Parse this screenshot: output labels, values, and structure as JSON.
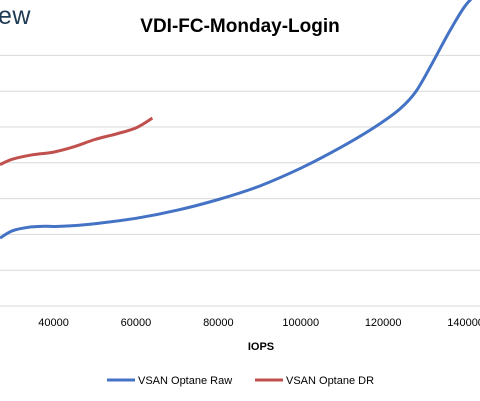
{
  "logo_fragment": "ew",
  "chart_data": {
    "type": "line",
    "title": "VDI-FC-Monday-Login",
    "xlabel": "IOPS",
    "ylabel": "",
    "x_ticks": [
      40000,
      60000,
      80000,
      100000,
      120000,
      140000
    ],
    "xlim": [
      27000,
      143500
    ],
    "grid": "horizontal",
    "legend_position": "bottom",
    "series": [
      {
        "name": "VSAN Optane Raw",
        "color": "#4472c4",
        "x": [
          27000,
          30000,
          34000,
          38000,
          42000,
          50000,
          60000,
          70000,
          80000,
          90000,
          100000,
          110000,
          118000,
          124000,
          128000,
          132000,
          136000,
          140000,
          143500
        ],
        "y": [
          3.8,
          4.2,
          4.4,
          4.45,
          4.45,
          4.6,
          4.9,
          5.35,
          5.95,
          6.7,
          7.7,
          8.9,
          10.0,
          11.0,
          12.0,
          13.6,
          15.3,
          16.8,
          17.6
        ]
      },
      {
        "name": "VSAN Optane DR",
        "color": "#c0504d",
        "x": [
          27000,
          30000,
          35000,
          40000,
          45000,
          50000,
          55000,
          60000,
          64000
        ],
        "y": [
          7.9,
          8.2,
          8.45,
          8.6,
          8.9,
          9.3,
          9.6,
          9.95,
          10.5
        ]
      }
    ]
  }
}
